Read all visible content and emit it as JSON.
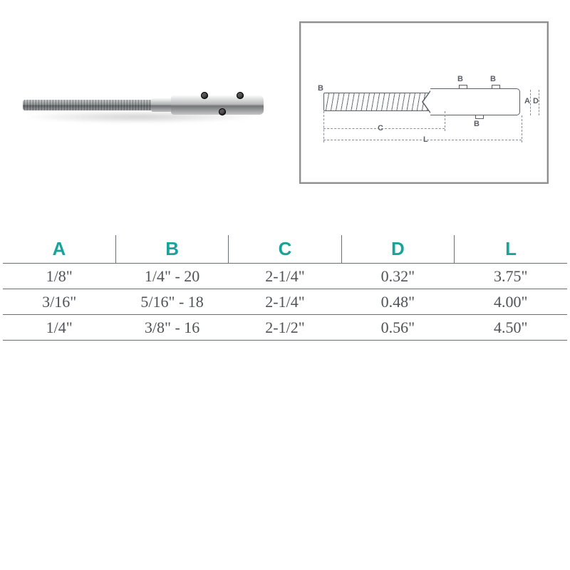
{
  "schematic": {
    "labels": {
      "B": "B",
      "A": "A",
      "D": "D",
      "C": "C",
      "L": "L"
    },
    "line_color": "#5a5f66",
    "dash_color": "#8a8e93",
    "box_border_color": "#8e8e8e"
  },
  "table": {
    "header_color": "#18a39b",
    "border_color": "#6a6f73",
    "cell_font": "Times New Roman",
    "columns": [
      "A",
      "B",
      "C",
      "D",
      "L"
    ],
    "rows": [
      [
        "1/8\"",
        "1/4\" - 20",
        "2-1/4\"",
        "0.32\"",
        "3.75\""
      ],
      [
        "3/16\"",
        "5/16\" - 18",
        "2-1/4\"",
        "0.48\"",
        "4.00\""
      ],
      [
        "1/4\"",
        "3/8\" - 16",
        "2-1/2\"",
        "0.56\"",
        "4.50\""
      ]
    ]
  }
}
